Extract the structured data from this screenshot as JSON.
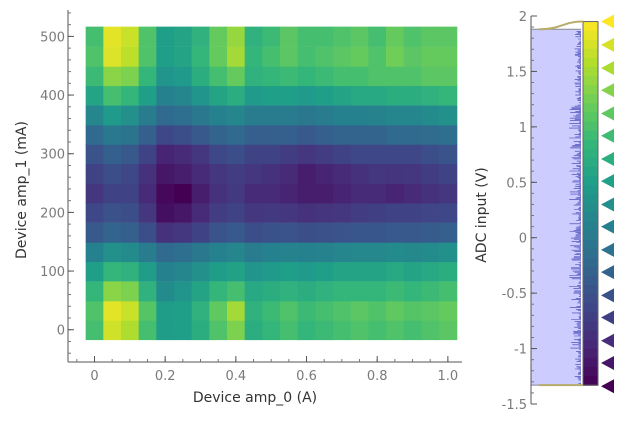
{
  "chart_data": [
    {
      "type": "heatmap",
      "title": "",
      "xlabel": "Device amp_0 (A)",
      "ylabel": "Device amp_1 (mA)",
      "x_ticks": [
        "0",
        "0.2",
        "0.4",
        "0.6",
        "0.8",
        "1.0"
      ],
      "y_ticks": [
        "0",
        "100",
        "200",
        "300",
        "400",
        "500"
      ],
      "xlim": [
        -0.075,
        1.04
      ],
      "ylim": [
        -55,
        545
      ],
      "x": [
        0.0,
        0.05,
        0.1,
        0.15,
        0.2,
        0.25,
        0.3,
        0.35,
        0.4,
        0.45,
        0.5,
        0.55,
        0.6,
        0.65,
        0.7,
        0.75,
        0.8,
        0.85,
        0.9,
        0.95,
        1.0
      ],
      "y": [
        0,
        33,
        66,
        100,
        133,
        166,
        200,
        233,
        266,
        300,
        333,
        366,
        400,
        433,
        466,
        500
      ],
      "z": [
        [
          0.7,
          0.93,
          0.88,
          0.7,
          0.55,
          0.56,
          0.62,
          0.72,
          0.8,
          0.62,
          0.66,
          0.7,
          0.66,
          0.68,
          0.7,
          0.72,
          0.7,
          0.72,
          0.7,
          0.72,
          0.74
        ],
        [
          0.72,
          0.96,
          0.92,
          0.73,
          0.55,
          0.56,
          0.64,
          0.75,
          0.86,
          0.64,
          0.68,
          0.72,
          0.68,
          0.7,
          0.72,
          0.74,
          0.72,
          0.75,
          0.73,
          0.74,
          0.76
        ],
        [
          0.66,
          0.82,
          0.8,
          0.64,
          0.48,
          0.52,
          0.58,
          0.66,
          0.7,
          0.6,
          0.62,
          0.64,
          0.62,
          0.64,
          0.66,
          0.66,
          0.66,
          0.68,
          0.66,
          0.68,
          0.7
        ],
        [
          0.56,
          0.66,
          0.64,
          0.55,
          0.44,
          0.46,
          0.5,
          0.55,
          0.57,
          0.52,
          0.54,
          0.56,
          0.54,
          0.56,
          0.58,
          0.58,
          0.58,
          0.6,
          0.58,
          0.6,
          0.62
        ],
        [
          0.44,
          0.5,
          0.48,
          0.42,
          0.34,
          0.36,
          0.4,
          0.44,
          0.46,
          0.42,
          0.44,
          0.45,
          0.44,
          0.45,
          0.46,
          0.47,
          0.47,
          0.48,
          0.47,
          0.48,
          0.5
        ],
        [
          0.28,
          0.32,
          0.3,
          0.24,
          0.14,
          0.16,
          0.2,
          0.26,
          0.28,
          0.24,
          0.25,
          0.26,
          0.24,
          0.25,
          0.26,
          0.27,
          0.27,
          0.28,
          0.28,
          0.29,
          0.3
        ],
        [
          0.22,
          0.25,
          0.24,
          0.16,
          0.04,
          0.06,
          0.12,
          0.18,
          0.2,
          0.16,
          0.17,
          0.16,
          0.14,
          0.15,
          0.16,
          0.18,
          0.19,
          0.2,
          0.2,
          0.21,
          0.22
        ],
        [
          0.16,
          0.2,
          0.2,
          0.12,
          0.02,
          0.0,
          0.08,
          0.14,
          0.17,
          0.12,
          0.12,
          0.1,
          0.08,
          0.08,
          0.1,
          0.12,
          0.12,
          0.1,
          0.12,
          0.14,
          0.16
        ],
        [
          0.2,
          0.24,
          0.22,
          0.14,
          0.06,
          0.08,
          0.12,
          0.16,
          0.18,
          0.16,
          0.14,
          0.12,
          0.08,
          0.1,
          0.12,
          0.14,
          0.16,
          0.15,
          0.16,
          0.18,
          0.2
        ],
        [
          0.26,
          0.3,
          0.28,
          0.2,
          0.1,
          0.12,
          0.16,
          0.22,
          0.24,
          0.2,
          0.2,
          0.18,
          0.16,
          0.18,
          0.2,
          0.22,
          0.22,
          0.22,
          0.22,
          0.24,
          0.26
        ],
        [
          0.34,
          0.4,
          0.38,
          0.3,
          0.22,
          0.24,
          0.28,
          0.32,
          0.34,
          0.3,
          0.3,
          0.3,
          0.28,
          0.3,
          0.32,
          0.32,
          0.32,
          0.34,
          0.34,
          0.35,
          0.36
        ],
        [
          0.46,
          0.54,
          0.5,
          0.42,
          0.34,
          0.36,
          0.4,
          0.44,
          0.46,
          0.42,
          0.42,
          0.42,
          0.4,
          0.42,
          0.44,
          0.44,
          0.45,
          0.46,
          0.46,
          0.48,
          0.5
        ],
        [
          0.58,
          0.7,
          0.66,
          0.56,
          0.44,
          0.46,
          0.52,
          0.58,
          0.62,
          0.54,
          0.56,
          0.56,
          0.54,
          0.56,
          0.58,
          0.6,
          0.6,
          0.62,
          0.62,
          0.64,
          0.66
        ],
        [
          0.68,
          0.82,
          0.8,
          0.66,
          0.52,
          0.54,
          0.62,
          0.7,
          0.76,
          0.64,
          0.66,
          0.68,
          0.66,
          0.68,
          0.7,
          0.7,
          0.72,
          0.72,
          0.72,
          0.74,
          0.74
        ],
        [
          0.72,
          0.95,
          0.9,
          0.72,
          0.56,
          0.58,
          0.66,
          0.76,
          0.86,
          0.66,
          0.7,
          0.74,
          0.7,
          0.72,
          0.74,
          0.76,
          0.72,
          0.78,
          0.74,
          0.76,
          0.76
        ],
        [
          0.7,
          0.96,
          0.92,
          0.72,
          0.56,
          0.58,
          0.64,
          0.76,
          0.84,
          0.64,
          0.68,
          0.74,
          0.7,
          0.7,
          0.72,
          0.74,
          0.7,
          0.76,
          0.72,
          0.74,
          0.74
        ]
      ],
      "colormap": [
        "#440154",
        "#482878",
        "#3e4989",
        "#31688e",
        "#26828e",
        "#1f9e89",
        "#35b779",
        "#6ece58",
        "#b5de2b",
        "#fde725"
      ]
    },
    {
      "type": "histogram",
      "title": "",
      "ylabel": "ADC input (V)",
      "y_ticks": [
        "-1.5",
        "-1",
        "-0.5",
        "0",
        "0.5",
        "1",
        "1.5",
        "2"
      ],
      "ylim": [
        -1.5,
        2.0
      ],
      "region": [
        -1.33,
        1.88
      ],
      "region_color": "#ccccff",
      "histogram_color": "#3a3ab0",
      "colorbar_range": [
        -1.33,
        1.95
      ],
      "level_markers": [
        1.95,
        1.74,
        1.53,
        1.33,
        1.12,
        0.92,
        0.71,
        0.51,
        0.3,
        0.1,
        -0.11,
        -0.31,
        -0.52,
        -0.72,
        -0.93,
        -1.13,
        -1.34
      ]
    }
  ]
}
